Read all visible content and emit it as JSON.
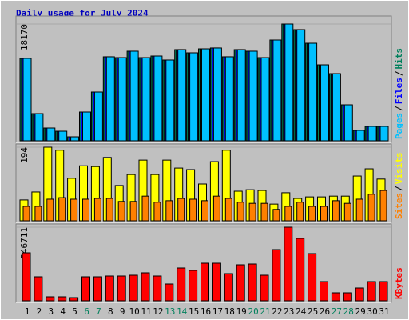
{
  "chart_data": [
    {
      "type": "bar",
      "title": "Daily usage for July 2024",
      "title_color": "#0000c0",
      "ylim": [
        0,
        18170
      ],
      "yticks": [
        18170
      ],
      "legend_separator": "/",
      "series": [
        {
          "name": "Hits",
          "color": "#00805c",
          "values": [
            12820,
            4230,
            1990,
            1490,
            620,
            4480,
            7590,
            13070,
            12940,
            13940,
            12940,
            13190,
            12570,
            14190,
            13690,
            14310,
            14440,
            13070,
            14190,
            13940,
            12940,
            15680,
            18170,
            17300,
            15180,
            11820,
            10450,
            5600,
            1620,
            2240,
            2240
          ]
        },
        {
          "name": "Files",
          "color": "#0000ff",
          "values": [
            12820,
            4230,
            1990,
            1490,
            620,
            4480,
            7590,
            13070,
            12940,
            13940,
            12940,
            13190,
            12570,
            14190,
            13690,
            14310,
            14440,
            13070,
            14190,
            13940,
            12940,
            15680,
            18170,
            17300,
            15180,
            11820,
            10450,
            5600,
            1620,
            2240,
            2240
          ]
        },
        {
          "name": "Pages",
          "color": "#00c0ff",
          "values": [
            12820,
            4230,
            1990,
            1490,
            620,
            4480,
            7590,
            13070,
            12940,
            13940,
            12940,
            13190,
            12570,
            14190,
            13690,
            14310,
            14440,
            13070,
            14190,
            13940,
            12940,
            15680,
            18170,
            17300,
            15180,
            11820,
            10450,
            5600,
            1620,
            2240,
            2240
          ]
        }
      ]
    },
    {
      "type": "bar",
      "ylim": [
        0,
        194
      ],
      "yticks": [
        194
      ],
      "legend_separator": "/",
      "series": [
        {
          "name": "Visits",
          "color": "#ffff00",
          "values": [
            55,
            76,
            194,
            186,
            112,
            145,
            143,
            167,
            93,
            122,
            160,
            122,
            160,
            139,
            135,
            97,
            156,
            186,
            78,
            82,
            80,
            44,
            74,
            59,
            63,
            63,
            65,
            65,
            118,
            137,
            110
          ]
        },
        {
          "name": "Sites",
          "color": "#ff8000",
          "values": [
            38,
            38,
            57,
            61,
            57,
            57,
            59,
            59,
            51,
            51,
            65,
            49,
            53,
            59,
            57,
            53,
            65,
            59,
            49,
            46,
            46,
            30,
            38,
            49,
            38,
            38,
            53,
            46,
            57,
            70,
            80
          ]
        }
      ]
    },
    {
      "type": "bar",
      "ylim": [
        0,
        546711
      ],
      "yticks": [
        546711
      ],
      "categories": [
        "1",
        "2",
        "3",
        "4",
        "5",
        "6",
        "7",
        "8",
        "9",
        "10",
        "11",
        "12",
        "13",
        "14",
        "15",
        "16",
        "17",
        "18",
        "19",
        "20",
        "21",
        "22",
        "23",
        "24",
        "25",
        "26",
        "27",
        "28",
        "29",
        "30",
        "31"
      ],
      "category_colors": [
        "#000000",
        "#000000",
        "#000000",
        "#000000",
        "#000000",
        "#00805c",
        "#00805c",
        "#000000",
        "#000000",
        "#000000",
        "#000000",
        "#000000",
        "#00805c",
        "#00805c",
        "#000000",
        "#000000",
        "#000000",
        "#000000",
        "#000000",
        "#00805c",
        "#00805c",
        "#000000",
        "#000000",
        "#000000",
        "#000000",
        "#000000",
        "#00805c",
        "#00805c",
        "#000000",
        "#000000",
        "#000000"
      ],
      "series": [
        {
          "name": "KBytes",
          "color": "#ff0000",
          "values": [
            356550,
            178280,
            29710,
            29710,
            23770,
            178280,
            178280,
            184220,
            184220,
            190160,
            208000,
            184220,
            124790,
            243650,
            225820,
            279300,
            279300,
            202050,
            267420,
            273360,
            190160,
            380320,
            546711,
            463520,
            350610,
            142620,
            59430,
            59430,
            95080,
            142620,
            142620
          ]
        }
      ]
    }
  ]
}
